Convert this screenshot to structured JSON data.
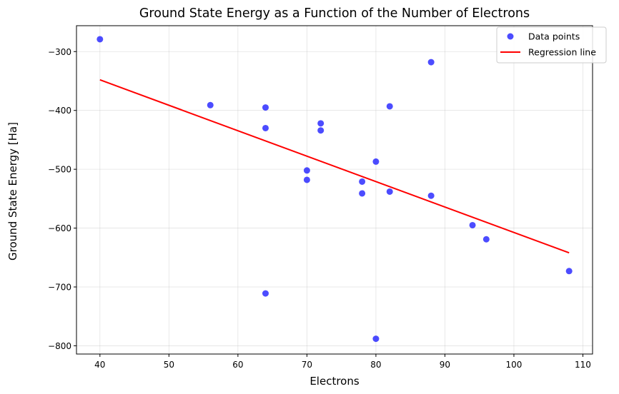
{
  "chart_data": {
    "type": "scatter",
    "title": "Ground State Energy as a Function of the Number of Electrons",
    "xlabel": "Electrons",
    "ylabel": "Ground State Energy [Ha]",
    "xlim": [
      36.6,
      111.4
    ],
    "ylim": [
      -814,
      -256
    ],
    "xticks": [
      40,
      50,
      60,
      70,
      80,
      90,
      100,
      110
    ],
    "yticks": [
      -800,
      -700,
      -600,
      -500,
      -400,
      -300
    ],
    "grid": true,
    "legend_position": "top-right",
    "series": [
      {
        "name": "Data points",
        "kind": "scatter",
        "color": "#0000ff",
        "x": [
          40,
          56,
          64,
          64,
          64,
          70,
          70,
          72,
          72,
          78,
          78,
          80,
          80,
          82,
          82,
          88,
          88,
          94,
          96,
          108
        ],
        "y": [
          -279,
          -391,
          -395,
          -430,
          -711,
          -502,
          -518,
          -422,
          -434,
          -521,
          -541,
          -487,
          -788,
          -393,
          -538,
          -318,
          -545,
          -595,
          -619,
          -673
        ]
      },
      {
        "name": "Regression line",
        "kind": "line",
        "color": "#ff0000",
        "x": [
          40,
          108
        ],
        "y": [
          -348,
          -642
        ]
      }
    ]
  }
}
